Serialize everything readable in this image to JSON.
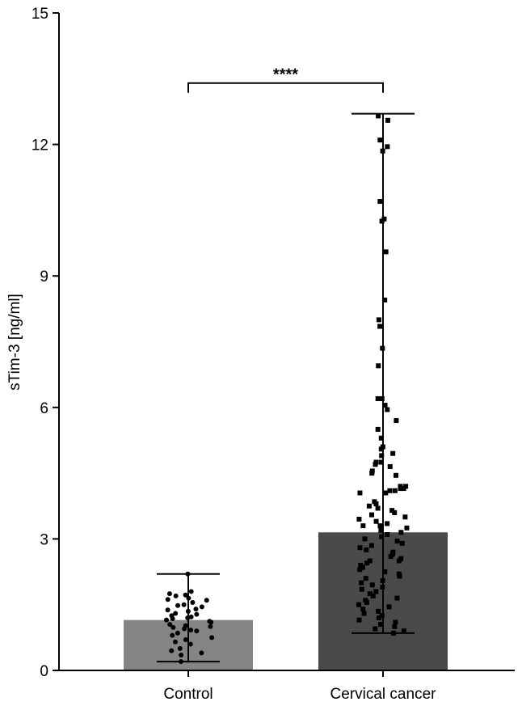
{
  "chart_data": {
    "type": "bar",
    "title": "",
    "xlabel": "",
    "ylabel": "sTim-3 [ng/ml]",
    "ylim": [
      0,
      15
    ],
    "yticks": [
      0,
      3,
      6,
      9,
      12,
      15
    ],
    "grid": false,
    "categories": [
      "Control",
      "Cervical cancer"
    ],
    "values": [
      1.15,
      3.15
    ],
    "bar_colors": [
      "#858585",
      "#4a4a4a"
    ],
    "error_bars": [
      {
        "low": 0.2,
        "high": 2.2
      },
      {
        "low": 0.85,
        "high": 12.7
      }
    ],
    "significance": {
      "between": [
        "Control",
        "Cervical cancer"
      ],
      "label": "****",
      "y": 13.4
    },
    "points": [
      {
        "category": "Control",
        "marker": "circle",
        "values": [
          2.2,
          1.8,
          1.75,
          1.7,
          1.72,
          1.65,
          1.62,
          1.6,
          1.55,
          1.5,
          1.48,
          1.45,
          1.4,
          1.38,
          1.35,
          1.3,
          1.28,
          1.25,
          1.22,
          1.2,
          1.18,
          1.15,
          1.12,
          1.1,
          1.05,
          1.02,
          1.0,
          0.98,
          0.95,
          0.92,
          0.9,
          0.85,
          0.8,
          0.75,
          0.7,
          0.65,
          0.6,
          0.5,
          0.45,
          0.4,
          0.35,
          0.2
        ]
      },
      {
        "category": "Cervical cancer",
        "marker": "square",
        "values": [
          12.65,
          12.55,
          12.1,
          11.95,
          11.85,
          10.7,
          10.3,
          10.25,
          9.55,
          8.45,
          8.0,
          7.85,
          7.35,
          6.95,
          6.2,
          6.2,
          6.05,
          5.95,
          5.7,
          5.5,
          5.3,
          5.1,
          5.05,
          4.95,
          4.9,
          4.75,
          4.75,
          4.7,
          4.65,
          4.55,
          4.5,
          4.45,
          4.2,
          4.2,
          4.15,
          4.15,
          4.1,
          4.1,
          4.05,
          4.05,
          3.85,
          3.8,
          3.75,
          3.7,
          3.65,
          3.6,
          3.55,
          3.5,
          3.45,
          3.4,
          3.35,
          3.3,
          3.3,
          3.25,
          3.2,
          3.15,
          3.1,
          3.05,
          3.0,
          2.95,
          2.9,
          2.85,
          2.8,
          2.75,
          2.7,
          2.65,
          2.6,
          2.55,
          2.5,
          2.5,
          2.45,
          2.4,
          2.35,
          2.3,
          2.25,
          2.2,
          2.15,
          2.1,
          2.05,
          2.0,
          1.95,
          1.9,
          1.85,
          1.8,
          1.75,
          1.7,
          1.65,
          1.6,
          1.55,
          1.5,
          1.45,
          1.4,
          1.35,
          1.3,
          1.25,
          1.2,
          1.15,
          1.1,
          1.05,
          1.0,
          0.95,
          0.9,
          0.85
        ]
      }
    ]
  }
}
